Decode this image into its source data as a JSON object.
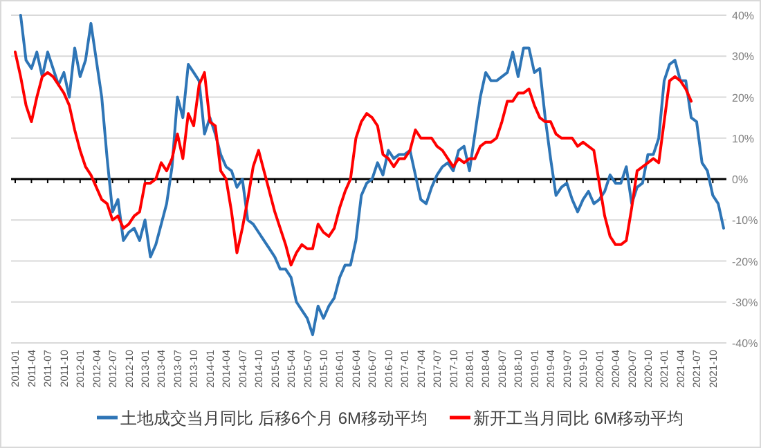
{
  "chart_data": {
    "type": "line",
    "categories": [
      "2011-01",
      null,
      null,
      "2011-04",
      null,
      null,
      "2011-07",
      null,
      null,
      "2011-10",
      null,
      null,
      "2012-01",
      null,
      null,
      "2012-04",
      null,
      null,
      "2012-07",
      null,
      null,
      "2012-10",
      null,
      null,
      "2013-01",
      null,
      null,
      "2013-04",
      null,
      null,
      "2013-07",
      null,
      null,
      "2013-10",
      null,
      null,
      "2014-01",
      null,
      null,
      "2014-04",
      null,
      null,
      "2014-07",
      null,
      null,
      "2014-10",
      null,
      null,
      "2015-01",
      null,
      null,
      "2015-04",
      null,
      null,
      "2015-07",
      null,
      null,
      "2015-10",
      null,
      null,
      "2016-01",
      null,
      null,
      "2016-04",
      null,
      null,
      "2016-07",
      null,
      null,
      "2016-10",
      null,
      null,
      "2017-01",
      null,
      null,
      "2017-04",
      null,
      null,
      "2017-07",
      null,
      null,
      "2017-10",
      null,
      null,
      "2018-01",
      null,
      null,
      "2018-04",
      null,
      null,
      "2018-07",
      null,
      null,
      "2018-10",
      null,
      null,
      "2019-01",
      null,
      null,
      "2019-04",
      null,
      null,
      "2019-07",
      null,
      null,
      "2019-10",
      null,
      null,
      "2020-01",
      null,
      null,
      "2020-04",
      null,
      null,
      "2020-07",
      null,
      null,
      "2020-10",
      null,
      null,
      "2021-01",
      null,
      null,
      "2021-04",
      null,
      null,
      "2021-07",
      null,
      null,
      "2021-10",
      null,
      null
    ],
    "series": [
      {
        "name": "土地成交当月同比 后移6个月 6M移动平均",
        "color": "#2e75b6",
        "values": [
          null,
          40,
          29,
          27,
          31,
          25,
          31,
          27,
          23,
          26,
          20,
          32,
          25,
          29,
          38,
          29,
          20,
          5,
          -8,
          -5,
          -15,
          -13,
          -12,
          -15,
          -10,
          -19,
          -16,
          -11,
          -6,
          3,
          20,
          15,
          28,
          26,
          24,
          11,
          15,
          11,
          6,
          3,
          2,
          -2,
          0,
          -10,
          -11,
          -13,
          -15,
          -17,
          -19,
          -22,
          -22,
          -24,
          -30,
          -32,
          -34,
          -38,
          -31,
          -34,
          -31,
          -29,
          -24,
          -21,
          -21,
          -15,
          -4,
          -1,
          0,
          4,
          1,
          7,
          5,
          6,
          6,
          7,
          1,
          -5,
          -6,
          -2,
          1,
          3,
          4,
          2,
          7,
          8,
          2,
          11,
          20,
          26,
          24,
          24,
          25,
          26,
          31,
          25,
          32,
          32,
          26,
          27,
          15,
          5,
          -4,
          -2,
          -1,
          -5,
          -8,
          -5,
          -3,
          -6,
          -5,
          -3,
          1,
          -1,
          -1,
          3,
          -6,
          -2,
          -1,
          6,
          6,
          10,
          24,
          28,
          29,
          24,
          24,
          15,
          14,
          4,
          2,
          -4,
          -6,
          -12
        ]
      },
      {
        "name": "新开工当月同比 6M移动平均",
        "color": "#ff0000",
        "values": [
          31,
          25,
          18,
          14,
          20,
          25,
          26,
          25,
          23,
          21,
          18,
          12,
          7,
          3,
          1,
          -2,
          -5,
          -6,
          -10,
          -9,
          -12,
          -11,
          -9,
          -8,
          -1,
          -1,
          0,
          4,
          2,
          5,
          11,
          5,
          16,
          13,
          23,
          26,
          14,
          13,
          2,
          0,
          -8,
          -18,
          -12,
          -5,
          3,
          7,
          2,
          -3,
          -8,
          -12,
          -16,
          -21,
          -18,
          -16,
          -17,
          -17,
          -11,
          -13,
          -14,
          -12,
          -7,
          -3,
          0,
          10,
          14,
          16,
          15,
          13,
          6,
          5,
          3,
          5,
          5,
          7,
          12,
          10,
          10,
          10,
          8,
          7,
          5,
          3,
          5,
          4,
          5,
          5,
          8,
          9,
          9,
          10,
          14,
          19,
          19,
          21,
          21,
          22,
          18,
          15,
          14,
          14,
          11,
          10,
          10,
          10,
          8,
          9,
          8,
          7,
          -1,
          -9,
          -14,
          -16,
          -16,
          -15,
          -7,
          2,
          3,
          4,
          5,
          4,
          14,
          24,
          25,
          24,
          22,
          19,
          null,
          null,
          null,
          null,
          null,
          null
        ]
      }
    ],
    "ylim": [
      -40,
      40
    ],
    "yticks": [
      {
        "value": 40,
        "label": "40%"
      },
      {
        "value": 30,
        "label": "30%"
      },
      {
        "value": 20,
        "label": "20%"
      },
      {
        "value": 10,
        "label": "10%"
      },
      {
        "value": 0,
        "label": "0%"
      },
      {
        "value": -10,
        "label": "-10%"
      },
      {
        "value": -20,
        "label": "-20%"
      },
      {
        "value": -30,
        "label": "-30%"
      },
      {
        "value": -40,
        "label": "-40%"
      }
    ],
    "grid": "y",
    "legend": "bottom",
    "marker": "none",
    "line_style": "solid"
  }
}
